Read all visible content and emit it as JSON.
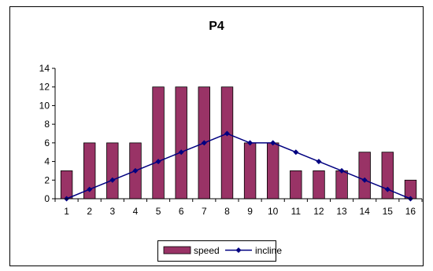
{
  "chart_data": {
    "type": "bar",
    "title": "P4",
    "xlabel": "",
    "ylabel": "",
    "categories": [
      "1",
      "2",
      "3",
      "4",
      "5",
      "6",
      "7",
      "8",
      "9",
      "10",
      "11",
      "12",
      "13",
      "14",
      "15",
      "16"
    ],
    "series": [
      {
        "name": "speed",
        "type": "bar",
        "color": "#993366",
        "values": [
          3,
          6,
          6,
          6,
          12,
          12,
          12,
          12,
          6,
          6,
          3,
          3,
          3,
          5,
          5,
          2
        ]
      },
      {
        "name": "incline",
        "type": "line",
        "color": "#000080",
        "values": [
          0,
          1,
          2,
          3,
          4,
          5,
          6,
          7,
          6,
          6,
          5,
          4,
          3,
          2,
          1,
          0
        ]
      }
    ],
    "ylim": [
      0,
      14
    ],
    "yticks": [
      "0",
      "2",
      "4",
      "6",
      "8",
      "10",
      "12",
      "14"
    ],
    "grid": false,
    "legend_position": "bottom"
  },
  "legend": {
    "speed_label": "speed",
    "incline_label": "incline"
  }
}
